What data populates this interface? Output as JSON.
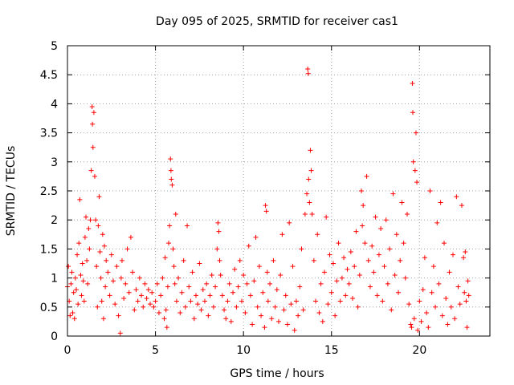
{
  "chart_data": {
    "type": "scatter",
    "title": "Day 095 of 2025, SRMTID for receiver cas1",
    "xlabel": "GPS time / hours",
    "ylabel": "SRMTID / TECUs",
    "xlim": [
      0,
      24
    ],
    "ylim": [
      0,
      5
    ],
    "xticks": [
      0,
      5,
      10,
      15,
      20
    ],
    "yticks": [
      0,
      0.5,
      1,
      1.5,
      2,
      2.5,
      3,
      3.5,
      4,
      4.5,
      5
    ],
    "xtick_labels": [
      "0",
      "5",
      "10",
      "15",
      "20"
    ],
    "ytick_labels": [
      "0",
      "0.5",
      "1",
      "1.5",
      "2",
      "2.5",
      "3",
      "3.5",
      "4",
      "4.5",
      "5"
    ],
    "grid": true,
    "marker": "+",
    "color": "#ff0000",
    "series": [
      {
        "name": "SRMTID",
        "points": [
          [
            0.0,
            0.85
          ],
          [
            0.05,
            1.2
          ],
          [
            0.1,
            0.6
          ],
          [
            0.15,
            0.35
          ],
          [
            0.2,
            0.9
          ],
          [
            0.25,
            1.1
          ],
          [
            0.3,
            0.4
          ],
          [
            0.35,
            0.75
          ],
          [
            0.4,
            0.3
          ],
          [
            0.45,
            1.0
          ],
          [
            0.5,
            0.8
          ],
          [
            0.55,
            1.4
          ],
          [
            0.6,
            0.55
          ],
          [
            0.65,
            1.6
          ],
          [
            0.7,
            2.35
          ],
          [
            0.75,
            1.05
          ],
          [
            0.8,
            0.7
          ],
          [
            0.85,
            1.25
          ],
          [
            0.9,
            0.95
          ],
          [
            0.95,
            0.6
          ],
          [
            1.0,
            1.7
          ],
          [
            1.05,
            2.05
          ],
          [
            1.1,
            1.3
          ],
          [
            1.15,
            0.9
          ],
          [
            1.2,
            1.85
          ],
          [
            1.25,
            1.5
          ],
          [
            1.3,
            2.0
          ],
          [
            1.35,
            2.85
          ],
          [
            1.4,
            3.95
          ],
          [
            1.42,
            3.65
          ],
          [
            1.45,
            3.25
          ],
          [
            1.5,
            3.85
          ],
          [
            1.55,
            2.75
          ],
          [
            1.6,
            2.0
          ],
          [
            1.65,
            1.2
          ],
          [
            1.7,
            0.5
          ],
          [
            1.75,
            1.9
          ],
          [
            1.8,
            2.4
          ],
          [
            1.85,
            1.45
          ],
          [
            1.9,
            1.0
          ],
          [
            1.95,
            0.6
          ],
          [
            2.0,
            1.75
          ],
          [
            2.05,
            0.3
          ],
          [
            2.1,
            1.55
          ],
          [
            2.15,
            0.85
          ],
          [
            2.2,
            1.3
          ],
          [
            2.3,
            1.1
          ],
          [
            2.4,
            0.7
          ],
          [
            2.5,
            1.4
          ],
          [
            2.6,
            0.95
          ],
          [
            2.7,
            0.55
          ],
          [
            2.8,
            1.2
          ],
          [
            2.9,
            0.35
          ],
          [
            3.0,
            0.05
          ],
          [
            3.05,
            1.0
          ],
          [
            3.1,
            1.3
          ],
          [
            3.2,
            0.65
          ],
          [
            3.3,
            0.9
          ],
          [
            3.4,
            1.5
          ],
          [
            3.5,
            0.75
          ],
          [
            3.6,
            1.7
          ],
          [
            3.7,
            1.1
          ],
          [
            3.8,
            0.45
          ],
          [
            3.9,
            0.8
          ],
          [
            4.0,
            0.6
          ],
          [
            4.1,
            1.0
          ],
          [
            4.2,
            0.7
          ],
          [
            4.3,
            0.5
          ],
          [
            4.4,
            0.9
          ],
          [
            4.5,
            0.65
          ],
          [
            4.6,
            0.8
          ],
          [
            4.7,
            0.55
          ],
          [
            4.8,
            0.75
          ],
          [
            4.9,
            0.5
          ],
          [
            5.0,
            0.6
          ],
          [
            5.1,
            0.9
          ],
          [
            5.2,
            0.4
          ],
          [
            5.3,
            0.7
          ],
          [
            5.4,
            1.0
          ],
          [
            5.5,
            0.3
          ],
          [
            5.55,
            1.35
          ],
          [
            5.6,
            0.45
          ],
          [
            5.65,
            0.15
          ],
          [
            5.7,
            0.85
          ],
          [
            5.75,
            1.6
          ],
          [
            5.8,
            1.9
          ],
          [
            5.85,
            3.05
          ],
          [
            5.88,
            2.85
          ],
          [
            5.9,
            2.7
          ],
          [
            5.95,
            2.6
          ],
          [
            6.0,
            1.5
          ],
          [
            6.05,
            1.2
          ],
          [
            6.1,
            0.9
          ],
          [
            6.15,
            2.1
          ],
          [
            6.2,
            0.6
          ],
          [
            6.3,
            1.0
          ],
          [
            6.4,
            0.4
          ],
          [
            6.5,
            0.75
          ],
          [
            6.6,
            1.3
          ],
          [
            6.7,
            0.5
          ],
          [
            6.8,
            1.9
          ],
          [
            6.9,
            0.85
          ],
          [
            7.0,
            0.6
          ],
          [
            7.1,
            1.1
          ],
          [
            7.2,
            0.3
          ],
          [
            7.3,
            0.7
          ],
          [
            7.4,
            0.55
          ],
          [
            7.5,
            1.25
          ],
          [
            7.6,
            0.45
          ],
          [
            7.7,
            0.8
          ],
          [
            7.8,
            0.6
          ],
          [
            7.9,
            0.9
          ],
          [
            8.0,
            0.35
          ],
          [
            8.1,
            0.7
          ],
          [
            8.2,
            1.05
          ],
          [
            8.3,
            0.5
          ],
          [
            8.4,
            0.85
          ],
          [
            8.5,
            1.5
          ],
          [
            8.55,
            1.95
          ],
          [
            8.6,
            1.8
          ],
          [
            8.65,
            1.3
          ],
          [
            8.7,
            1.05
          ],
          [
            8.8,
            0.7
          ],
          [
            8.9,
            0.45
          ],
          [
            9.0,
            0.3
          ],
          [
            9.1,
            0.6
          ],
          [
            9.2,
            0.9
          ],
          [
            9.3,
            0.25
          ],
          [
            9.4,
            0.75
          ],
          [
            9.5,
            1.15
          ],
          [
            9.6,
            0.5
          ],
          [
            9.7,
            0.85
          ],
          [
            9.8,
            1.3
          ],
          [
            9.9,
            0.6
          ],
          [
            10.0,
            1.05
          ],
          [
            10.1,
            0.4
          ],
          [
            10.2,
            0.9
          ],
          [
            10.3,
            1.55
          ],
          [
            10.4,
            0.7
          ],
          [
            10.5,
            0.2
          ],
          [
            10.6,
            0.95
          ],
          [
            10.7,
            1.7
          ],
          [
            10.8,
            0.5
          ],
          [
            10.9,
            1.2
          ],
          [
            11.0,
            0.35
          ],
          [
            11.1,
            0.75
          ],
          [
            11.2,
            0.15
          ],
          [
            11.25,
            2.25
          ],
          [
            11.3,
            2.15
          ],
          [
            11.35,
            1.1
          ],
          [
            11.4,
            0.6
          ],
          [
            11.5,
            0.9
          ],
          [
            11.6,
            0.3
          ],
          [
            11.7,
            1.3
          ],
          [
            11.8,
            0.5
          ],
          [
            11.9,
            0.8
          ],
          [
            12.0,
            0.25
          ],
          [
            12.1,
            1.05
          ],
          [
            12.2,
            1.75
          ],
          [
            12.3,
            0.45
          ],
          [
            12.4,
            0.7
          ],
          [
            12.5,
            0.2
          ],
          [
            12.6,
            1.95
          ],
          [
            12.7,
            0.55
          ],
          [
            12.8,
            1.2
          ],
          [
            12.9,
            0.1
          ],
          [
            13.0,
            0.6
          ],
          [
            13.1,
            0.35
          ],
          [
            13.2,
            0.85
          ],
          [
            13.3,
            1.5
          ],
          [
            13.4,
            0.45
          ],
          [
            13.5,
            2.1
          ],
          [
            13.6,
            2.45
          ],
          [
            13.65,
            4.6
          ],
          [
            13.68,
            4.52
          ],
          [
            13.7,
            2.7
          ],
          [
            13.75,
            2.3
          ],
          [
            13.8,
            3.2
          ],
          [
            13.85,
            2.85
          ],
          [
            13.9,
            2.1
          ],
          [
            14.0,
            1.3
          ],
          [
            14.1,
            0.6
          ],
          [
            14.2,
            1.75
          ],
          [
            14.3,
            0.4
          ],
          [
            14.4,
            0.9
          ],
          [
            14.5,
            0.25
          ],
          [
            14.6,
            1.1
          ],
          [
            14.7,
            2.05
          ],
          [
            14.8,
            0.55
          ],
          [
            14.9,
            1.4
          ],
          [
            15.0,
            0.75
          ],
          [
            15.1,
            1.25
          ],
          [
            15.2,
            0.35
          ],
          [
            15.3,
            0.95
          ],
          [
            15.4,
            1.6
          ],
          [
            15.5,
            0.6
          ],
          [
            15.6,
            1.0
          ],
          [
            15.7,
            1.35
          ],
          [
            15.8,
            0.7
          ],
          [
            15.9,
            1.15
          ],
          [
            16.0,
            0.9
          ],
          [
            16.1,
            1.45
          ],
          [
            16.2,
            0.65
          ],
          [
            16.3,
            1.2
          ],
          [
            16.4,
            1.8
          ],
          [
            16.5,
            0.5
          ],
          [
            16.6,
            1.05
          ],
          [
            16.7,
            2.5
          ],
          [
            16.75,
            1.9
          ],
          [
            16.8,
            2.25
          ],
          [
            16.9,
            1.6
          ],
          [
            17.0,
            2.75
          ],
          [
            17.1,
            1.3
          ],
          [
            17.2,
            0.85
          ],
          [
            17.3,
            1.55
          ],
          [
            17.4,
            1.1
          ],
          [
            17.5,
            2.05
          ],
          [
            17.6,
            0.7
          ],
          [
            17.7,
            1.4
          ],
          [
            17.8,
            1.85
          ],
          [
            17.9,
            0.6
          ],
          [
            18.0,
            1.2
          ],
          [
            18.1,
            2.0
          ],
          [
            18.2,
            0.9
          ],
          [
            18.3,
            1.5
          ],
          [
            18.4,
            0.45
          ],
          [
            18.5,
            2.45
          ],
          [
            18.6,
            1.05
          ],
          [
            18.7,
            1.75
          ],
          [
            18.8,
            0.75
          ],
          [
            18.9,
            1.3
          ],
          [
            19.0,
            2.3
          ],
          [
            19.1,
            1.6
          ],
          [
            19.2,
            1.0
          ],
          [
            19.3,
            2.1
          ],
          [
            19.4,
            0.55
          ],
          [
            19.5,
            0.2
          ],
          [
            19.55,
            0.15
          ],
          [
            19.6,
            4.35
          ],
          [
            19.62,
            3.85
          ],
          [
            19.65,
            3.0
          ],
          [
            19.7,
            0.3
          ],
          [
            19.75,
            2.85
          ],
          [
            19.8,
            3.5
          ],
          [
            19.85,
            2.65
          ],
          [
            19.9,
            0.1
          ],
          [
            20.0,
            0.6
          ],
          [
            20.1,
            0.25
          ],
          [
            20.2,
            0.8
          ],
          [
            20.3,
            1.35
          ],
          [
            20.4,
            0.4
          ],
          [
            20.5,
            0.15
          ],
          [
            20.6,
            2.5
          ],
          [
            20.7,
            0.75
          ],
          [
            20.8,
            1.2
          ],
          [
            20.9,
            0.5
          ],
          [
            21.0,
            1.95
          ],
          [
            21.1,
            0.9
          ],
          [
            21.2,
            2.3
          ],
          [
            21.3,
            0.35
          ],
          [
            21.4,
            1.6
          ],
          [
            21.5,
            0.65
          ],
          [
            21.6,
            0.2
          ],
          [
            21.7,
            1.1
          ],
          [
            21.8,
            0.5
          ],
          [
            21.9,
            1.4
          ],
          [
            22.0,
            0.3
          ],
          [
            22.1,
            2.4
          ],
          [
            22.2,
            0.85
          ],
          [
            22.3,
            0.55
          ],
          [
            22.4,
            2.25
          ],
          [
            22.5,
            1.35
          ],
          [
            22.55,
            0.75
          ],
          [
            22.6,
            1.45
          ],
          [
            22.65,
            0.6
          ],
          [
            22.7,
            0.15
          ],
          [
            22.75,
            0.95
          ],
          [
            22.8,
            0.7
          ]
        ]
      }
    ]
  }
}
